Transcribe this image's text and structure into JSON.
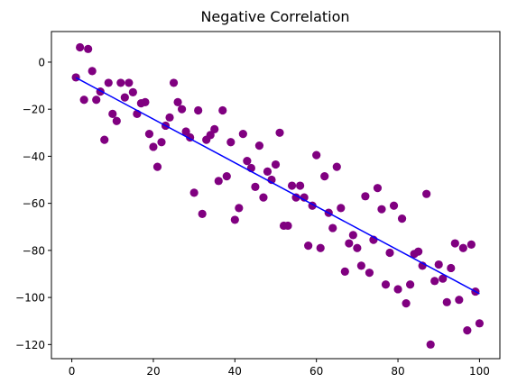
{
  "chart_data": {
    "type": "scatter",
    "title": "Negative Correlation",
    "xlabel": "",
    "ylabel": "",
    "xlim": [
      -5,
      105
    ],
    "ylim": [
      -126,
      13
    ],
    "x_ticks": [
      0,
      20,
      40,
      60,
      80,
      100
    ],
    "y_ticks": [
      0,
      -20,
      -40,
      -60,
      -80,
      -100,
      -120
    ],
    "grid": false,
    "point_color": "#800080",
    "line_color": "#0000ff",
    "points": [
      [
        1,
        -6.5
      ],
      [
        2,
        6.3
      ],
      [
        3,
        -16
      ],
      [
        4,
        5.6
      ],
      [
        5,
        -3.8
      ],
      [
        6,
        -16
      ],
      [
        7,
        -12.5
      ],
      [
        8,
        -33
      ],
      [
        9,
        -8.8
      ],
      [
        10,
        -22
      ],
      [
        11,
        -25
      ],
      [
        12,
        -8.8
      ],
      [
        13,
        -15
      ],
      [
        14,
        -8.8
      ],
      [
        15,
        -12.8
      ],
      [
        16,
        -22
      ],
      [
        17,
        -17.5
      ],
      [
        18,
        -17
      ],
      [
        19,
        -30.5
      ],
      [
        20,
        -36
      ],
      [
        21,
        -44.5
      ],
      [
        22,
        -34
      ],
      [
        23,
        -27
      ],
      [
        24,
        -23.5
      ],
      [
        25,
        -8.8
      ],
      [
        26,
        -17
      ],
      [
        27,
        -20
      ],
      [
        28,
        -29.5
      ],
      [
        29,
        -32
      ],
      [
        30,
        -55.5
      ],
      [
        31,
        -20.5
      ],
      [
        32,
        -64.5
      ],
      [
        33,
        -33
      ],
      [
        34,
        -31
      ],
      [
        35,
        -28.5
      ],
      [
        36,
        -50.5
      ],
      [
        37,
        -20.5
      ],
      [
        38,
        -48.5
      ],
      [
        39,
        -34
      ],
      [
        40,
        -67
      ],
      [
        41,
        -62
      ],
      [
        42,
        -30.5
      ],
      [
        43,
        -42
      ],
      [
        44,
        -45
      ],
      [
        45,
        -53
      ],
      [
        46,
        -35.5
      ],
      [
        47,
        -57.5
      ],
      [
        48,
        -46.5
      ],
      [
        49,
        -50
      ],
      [
        50,
        -43.5
      ],
      [
        51,
        -30
      ],
      [
        52,
        -69.5
      ],
      [
        53,
        -69.5
      ],
      [
        54,
        -52.5
      ],
      [
        55,
        -57.5
      ],
      [
        56,
        -52.5
      ],
      [
        57,
        -57.5
      ],
      [
        58,
        -78
      ],
      [
        59,
        -61
      ],
      [
        60,
        -39.5
      ],
      [
        61,
        -79
      ],
      [
        62,
        -48.5
      ],
      [
        63,
        -64
      ],
      [
        64,
        -70.5
      ],
      [
        65,
        -44.5
      ],
      [
        66,
        -62
      ],
      [
        67,
        -89
      ],
      [
        68,
        -77
      ],
      [
        69,
        -73.5
      ],
      [
        70,
        -79
      ],
      [
        71,
        -86.5
      ],
      [
        72,
        -57
      ],
      [
        73,
        -89.5
      ],
      [
        74,
        -75.5
      ],
      [
        75,
        -53.5
      ],
      [
        76,
        -62.5
      ],
      [
        77,
        -94.5
      ],
      [
        78,
        -81
      ],
      [
        79,
        -61
      ],
      [
        80,
        -96.5
      ],
      [
        81,
        -66.5
      ],
      [
        82,
        -102.5
      ],
      [
        83,
        -94.5
      ],
      [
        84,
        -81.5
      ],
      [
        85,
        -80.5
      ],
      [
        86,
        -86.5
      ],
      [
        87,
        -56
      ],
      [
        88,
        -120
      ],
      [
        89,
        -93
      ],
      [
        90,
        -86
      ],
      [
        91,
        -92
      ],
      [
        92,
        -102
      ],
      [
        93,
        -87.5
      ],
      [
        94,
        -77
      ],
      [
        95,
        -101
      ],
      [
        96,
        -79
      ],
      [
        97,
        -114
      ],
      [
        98,
        -77.5
      ],
      [
        99,
        -97.5
      ],
      [
        100,
        -111
      ]
    ],
    "fit_line": {
      "x": [
        1,
        100
      ],
      "y": [
        -6.6,
        -98.4
      ]
    }
  }
}
